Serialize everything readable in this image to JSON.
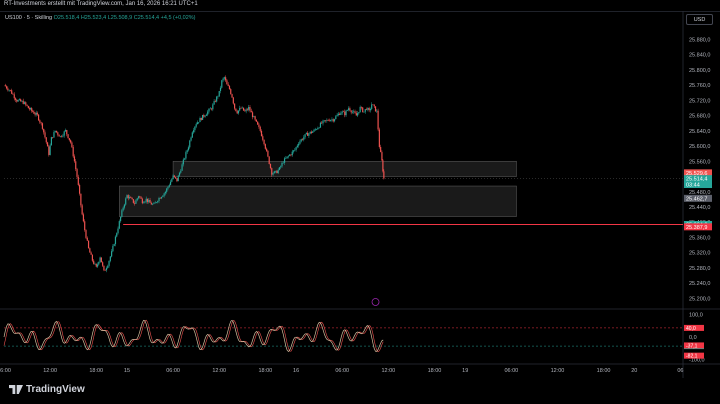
{
  "header": {
    "attribution": "RT-Investments erstellt mit TradingView.com, Jan 16, 2026 16:21 UTC+1"
  },
  "legend": {
    "symbol": "US100 · 5 · Skilling",
    "values": "O25.518,4 H25.523,4 L25.508,9 C25.514,4 +4,5 (+0,02%)"
  },
  "currency_button": "USD",
  "footer": {
    "logo_text": "TradingView"
  },
  "colors": {
    "up": "#26a69a",
    "down": "#ef5350",
    "level_line": "#f23645",
    "oscillator_line": "#d4bfa0",
    "background": "#000000"
  },
  "chart_data": {
    "type": "candlestick",
    "price_axis": {
      "ylim": [
        25180,
        25910
      ],
      "ticks": [
        "25.880,0",
        "25.840,0",
        "25.800,0",
        "25.760,0",
        "25.720,0",
        "25.680,0",
        "25.640,0",
        "25.600,0",
        "25.560,0",
        "25.520,0",
        "25.480,0",
        "25.440,0",
        "25.400,0",
        "25.360,0",
        "25.320,0",
        "25.280,0",
        "25.240,0",
        "25.200,0"
      ],
      "tick_values": [
        25880,
        25840,
        25800,
        25760,
        25720,
        25680,
        25640,
        25600,
        25560,
        25520,
        25480,
        25440,
        25400,
        25360,
        25320,
        25280,
        25240,
        25200
      ]
    },
    "price_labels": [
      {
        "text": "25.529,6",
        "value": 25529.6,
        "color": "#ef5350"
      },
      {
        "text": "25.514,4",
        "value": 25514.4,
        "color": "#26a69a"
      },
      {
        "text": "03:44",
        "value": 25499,
        "color": "#26a69a"
      },
      {
        "text": "25.462,7",
        "value": 25462.7,
        "color": "#5d606b"
      },
      {
        "text": "25.394,0",
        "value": 25394.0,
        "color": "#26a69a"
      },
      {
        "text": "25.387,9",
        "value": 25387.9,
        "color": "#f23645"
      }
    ],
    "time_axis": {
      "labels": [
        "06:00",
        "12:00",
        "18:00",
        "15",
        "06:00",
        "12:00",
        "18:00",
        "16",
        "06:00",
        "12:00",
        "18:00",
        "19",
        "06:00",
        "12:00",
        "18:00",
        "20",
        "06"
      ],
      "index_positions": [
        0,
        72,
        144,
        192,
        264,
        336,
        408,
        456,
        528,
        600,
        672,
        720,
        792,
        864,
        936,
        984,
        1056
      ]
    },
    "close_points": [
      [
        0,
        25760
      ],
      [
        10,
        25745
      ],
      [
        20,
        25720
      ],
      [
        30,
        25715
      ],
      [
        38,
        25700
      ],
      [
        45,
        25690
      ],
      [
        52,
        25680
      ],
      [
        60,
        25650
      ],
      [
        66,
        25610
      ],
      [
        70,
        25580
      ],
      [
        74,
        25620
      ],
      [
        80,
        25640
      ],
      [
        88,
        25625
      ],
      [
        96,
        25640
      ],
      [
        104,
        25610
      ],
      [
        110,
        25560
      ],
      [
        114,
        25520
      ],
      [
        118,
        25470
      ],
      [
        122,
        25420
      ],
      [
        126,
        25380
      ],
      [
        132,
        25330
      ],
      [
        138,
        25300
      ],
      [
        144,
        25280
      ],
      [
        150,
        25310
      ],
      [
        156,
        25270
      ],
      [
        162,
        25290
      ],
      [
        168,
        25320
      ],
      [
        174,
        25360
      ],
      [
        180,
        25400
      ],
      [
        186,
        25440
      ],
      [
        192,
        25470
      ],
      [
        198,
        25460
      ],
      [
        204,
        25450
      ],
      [
        210,
        25470
      ],
      [
        216,
        25455
      ],
      [
        222,
        25460
      ],
      [
        228,
        25450
      ],
      [
        234,
        25445
      ],
      [
        240,
        25460
      ],
      [
        246,
        25470
      ],
      [
        252,
        25480
      ],
      [
        258,
        25500
      ],
      [
        264,
        25520
      ],
      [
        270,
        25510
      ],
      [
        276,
        25540
      ],
      [
        282,
        25570
      ],
      [
        288,
        25600
      ],
      [
        294,
        25640
      ],
      [
        300,
        25660
      ],
      [
        306,
        25670
      ],
      [
        312,
        25680
      ],
      [
        318,
        25690
      ],
      [
        324,
        25700
      ],
      [
        330,
        25720
      ],
      [
        336,
        25740
      ],
      [
        340,
        25770
      ],
      [
        344,
        25780
      ],
      [
        348,
        25760
      ],
      [
        352,
        25750
      ],
      [
        356,
        25730
      ],
      [
        360,
        25700
      ],
      [
        364,
        25690
      ],
      [
        370,
        25700
      ],
      [
        376,
        25690
      ],
      [
        382,
        25700
      ],
      [
        388,
        25680
      ],
      [
        394,
        25660
      ],
      [
        400,
        25640
      ],
      [
        406,
        25610
      ],
      [
        412,
        25570
      ],
      [
        418,
        25530
      ],
      [
        424,
        25530
      ],
      [
        430,
        25540
      ],
      [
        436,
        25560
      ],
      [
        442,
        25570
      ],
      [
        448,
        25580
      ],
      [
        454,
        25590
      ],
      [
        460,
        25610
      ],
      [
        466,
        25620
      ],
      [
        472,
        25630
      ],
      [
        478,
        25635
      ],
      [
        484,
        25640
      ],
      [
        490,
        25650
      ],
      [
        496,
        25660
      ],
      [
        502,
        25665
      ],
      [
        508,
        25670
      ],
      [
        514,
        25670
      ],
      [
        520,
        25680
      ],
      [
        526,
        25690
      ],
      [
        532,
        25685
      ],
      [
        538,
        25700
      ],
      [
        544,
        25690
      ],
      [
        550,
        25680
      ],
      [
        556,
        25700
      ],
      [
        562,
        25690
      ],
      [
        566,
        25700
      ],
      [
        570,
        25690
      ],
      [
        574,
        25710
      ],
      [
        578,
        25700
      ],
      [
        582,
        25690
      ],
      [
        586,
        25600
      ],
      [
        590,
        25560
      ],
      [
        593,
        25514.4
      ]
    ],
    "levels": [
      {
        "value": 25394.0,
        "from_index": 186,
        "color": "#f23645"
      }
    ],
    "zones": [
      {
        "top": 25560,
        "bottom": 25520,
        "from_index": 264,
        "to_index": 800
      },
      {
        "top": 25495,
        "bottom": 25415,
        "from_index": 180,
        "to_index": 800
      }
    ],
    "current_price": 25514.4,
    "oscillator": {
      "ylim": [
        -110,
        110
      ],
      "ticks": [
        "100,0",
        "0,0",
        "-100,0"
      ],
      "tick_values": [
        100,
        0,
        -100
      ],
      "level_labels": [
        {
          "text": "40,0",
          "value": 40,
          "color": "#f23645"
        },
        {
          "text": "-40,0",
          "value": -40,
          "color": "#26a69a"
        },
        {
          "text": "-37,1",
          "value": -37.1,
          "color": "#f23645"
        },
        {
          "text": "-82,1",
          "value": -82.1,
          "color": "#f23645"
        }
      ],
      "upper_level": 40,
      "lower_level": -40
    }
  }
}
